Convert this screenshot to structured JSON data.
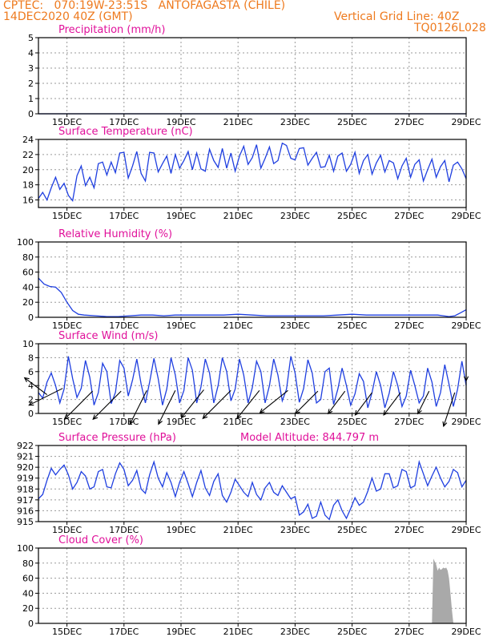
{
  "header": {
    "line1_left": "CPTEC:   070:19W-23:51S   ANTOFAGASTA (CHILE)",
    "line2_left": "14DEC2020 40Z (GMT)",
    "line1_right": "Vertical Grid Line: 40Z",
    "line2_right": "TQ0126L028",
    "model_altitude": "Model Altitude: 844.797 m"
  },
  "colors": {
    "header": "#ee7a1e",
    "title": "#e0109a",
    "series": "#1f3fe0",
    "cloud": "#a9a9a9",
    "wind_arrow": "#000000"
  },
  "chart_data": [
    {
      "type": "line",
      "title": "Precipitation (mm/h)",
      "x_tick_labels": [
        "15DEC",
        "17DEC",
        "19DEC",
        "21DEC",
        "23DEC",
        "25DEC",
        "27DEC",
        "29DEC"
      ],
      "x_tick_days": [
        15,
        17,
        19,
        21,
        23,
        25,
        27,
        29
      ],
      "xlim": [
        14.0,
        29.0
      ],
      "ylim": [
        0,
        5
      ],
      "y_ticks": [
        0,
        1,
        2,
        3,
        4,
        5
      ],
      "grid": true,
      "x": [
        14.0,
        29.0
      ],
      "values": [
        0,
        0
      ]
    },
    {
      "type": "line",
      "title": "Surface Temperature (nC)",
      "x_tick_labels": [
        "15DEC",
        "17DEC",
        "19DEC",
        "21DEC",
        "23DEC",
        "25DEC",
        "27DEC",
        "29DEC"
      ],
      "x_tick_days": [
        15,
        17,
        19,
        21,
        23,
        25,
        27,
        29
      ],
      "xlim": [
        14.0,
        29.0
      ],
      "ylim": [
        15,
        24
      ],
      "y_ticks": [
        16,
        18,
        20,
        22,
        24
      ],
      "grid": true,
      "x": [
        14.0,
        14.15,
        14.3,
        14.45,
        14.6,
        14.75,
        14.9,
        15.05,
        15.2,
        15.35,
        15.5,
        15.65,
        15.8,
        15.95,
        16.1,
        16.25,
        16.4,
        16.55,
        16.7,
        16.85,
        17.0,
        17.15,
        17.3,
        17.45,
        17.6,
        17.75,
        17.9,
        18.05,
        18.2,
        18.35,
        18.5,
        18.65,
        18.8,
        18.95,
        19.1,
        19.25,
        19.4,
        19.55,
        19.7,
        19.85,
        20.0,
        20.15,
        20.3,
        20.45,
        20.6,
        20.75,
        20.9,
        21.05,
        21.2,
        21.35,
        21.5,
        21.65,
        21.8,
        21.95,
        22.1,
        22.25,
        22.4,
        22.55,
        22.7,
        22.85,
        23.0,
        23.15,
        23.3,
        23.45,
        23.6,
        23.75,
        23.9,
        24.05,
        24.2,
        24.35,
        24.5,
        24.65,
        24.8,
        24.95,
        25.1,
        25.25,
        25.4,
        25.55,
        25.7,
        25.85,
        26.0,
        26.15,
        26.3,
        26.45,
        26.6,
        26.75,
        26.9,
        27.05,
        27.2,
        27.35,
        27.5,
        27.65,
        27.8,
        27.95,
        28.1,
        28.25,
        28.4,
        28.55,
        28.7,
        28.85,
        29.0
      ],
      "values": [
        16.2,
        17.0,
        16.0,
        17.6,
        19.0,
        17.4,
        18.2,
        16.6,
        15.9,
        19.2,
        20.5,
        17.9,
        19.0,
        17.6,
        20.8,
        21.0,
        19.3,
        21.0,
        19.6,
        22.2,
        22.3,
        18.9,
        20.5,
        22.4,
        19.5,
        18.5,
        22.3,
        22.2,
        19.7,
        20.8,
        21.8,
        19.5,
        22.0,
        20.2,
        21.2,
        22.4,
        20.0,
        22.2,
        20.1,
        19.8,
        22.7,
        21.2,
        20.3,
        22.8,
        20.2,
        22.2,
        19.8,
        21.8,
        23.1,
        20.7,
        21.6,
        23.3,
        20.2,
        21.5,
        23.0,
        20.8,
        21.2,
        23.5,
        23.2,
        21.5,
        21.3,
        22.8,
        22.9,
        20.6,
        21.5,
        22.3,
        20.3,
        20.4,
        21.9,
        19.8,
        21.8,
        22.2,
        19.8,
        20.7,
        22.3,
        19.5,
        21.2,
        22.0,
        19.4,
        20.9,
        21.9,
        19.7,
        21.2,
        20.9,
        18.8,
        20.5,
        21.5,
        19.0,
        20.7,
        21.3,
        18.5,
        20.0,
        21.4,
        19.0,
        20.4,
        21.2,
        18.4,
        20.6,
        21.0,
        20.1,
        18.8
      ]
    },
    {
      "type": "line",
      "title": "Relative Humidity (%)",
      "x_tick_labels": [
        "15DEC",
        "17DEC",
        "19DEC",
        "21DEC",
        "23DEC",
        "25DEC",
        "27DEC",
        "29DEC"
      ],
      "x_tick_days": [
        15,
        17,
        19,
        21,
        23,
        25,
        27,
        29
      ],
      "xlim": [
        14.0,
        29.0
      ],
      "ylim": [
        0,
        100
      ],
      "y_ticks": [
        0,
        20,
        40,
        60,
        80,
        100
      ],
      "grid": true,
      "x": [
        14.0,
        14.2,
        14.4,
        14.6,
        14.8,
        15.0,
        15.2,
        15.4,
        15.6,
        16.0,
        16.4,
        16.8,
        17.2,
        17.6,
        18.0,
        18.4,
        18.8,
        19.2,
        19.6,
        20.0,
        20.5,
        21.0,
        21.5,
        22.0,
        22.5,
        23.0,
        23.5,
        24.0,
        24.5,
        25.0,
        25.5,
        26.0,
        26.5,
        27.0,
        27.5,
        28.0,
        28.2,
        28.4,
        28.6,
        28.8,
        29.0
      ],
      "values": [
        52,
        44,
        41,
        40,
        33,
        20,
        9,
        4,
        3,
        2,
        1,
        1,
        2,
        3,
        3,
        2,
        3,
        3,
        3,
        3,
        3,
        4,
        3,
        2,
        2,
        2,
        2,
        2,
        3,
        4,
        3,
        3,
        3,
        3,
        3,
        3,
        2,
        1,
        2,
        6,
        10
      ]
    },
    {
      "type": "line",
      "title": "Surface Wind (m/s)",
      "x_tick_labels": [
        "15DEC",
        "17DEC",
        "19DEC",
        "21DEC",
        "23DEC",
        "25DEC",
        "27DEC",
        "29DEC"
      ],
      "x_tick_days": [
        15,
        17,
        19,
        21,
        23,
        25,
        27,
        29
      ],
      "xlim": [
        14.0,
        29.0
      ],
      "ylim": [
        0,
        10
      ],
      "y_ticks": [
        0,
        2,
        4,
        6,
        8,
        10
      ],
      "grid": true,
      "x": [
        14.0,
        14.15,
        14.3,
        14.45,
        14.6,
        14.75,
        14.9,
        15.05,
        15.2,
        15.35,
        15.5,
        15.65,
        15.8,
        15.95,
        16.1,
        16.25,
        16.4,
        16.55,
        16.7,
        16.85,
        17.0,
        17.15,
        17.3,
        17.45,
        17.6,
        17.75,
        17.9,
        18.05,
        18.2,
        18.35,
        18.5,
        18.65,
        18.8,
        18.95,
        19.1,
        19.25,
        19.4,
        19.55,
        19.7,
        19.85,
        20.0,
        20.15,
        20.3,
        20.45,
        20.6,
        20.75,
        20.9,
        21.05,
        21.2,
        21.35,
        21.5,
        21.65,
        21.8,
        21.95,
        22.1,
        22.25,
        22.4,
        22.55,
        22.7,
        22.85,
        23.0,
        23.15,
        23.3,
        23.45,
        23.6,
        23.75,
        23.9,
        24.05,
        24.2,
        24.35,
        24.5,
        24.65,
        24.8,
        24.95,
        25.1,
        25.25,
        25.4,
        25.55,
        25.7,
        25.85,
        26.0,
        26.15,
        26.3,
        26.45,
        26.6,
        26.75,
        26.9,
        27.05,
        27.2,
        27.35,
        27.5,
        27.65,
        27.8,
        27.95,
        28.1,
        28.25,
        28.4,
        28.55,
        28.7,
        28.85,
        29.0
      ],
      "values": [
        3.0,
        2.2,
        4.5,
        5.8,
        4.0,
        1.5,
        3.5,
        8.2,
        5.0,
        2.3,
        3.6,
        7.6,
        5.2,
        1.2,
        3.0,
        7.2,
        6.0,
        1.4,
        3.0,
        7.6,
        6.5,
        2.5,
        4.8,
        7.8,
        4.2,
        1.5,
        4.5,
        7.9,
        5.0,
        1.2,
        3.5,
        8.0,
        5.5,
        1.5,
        3.3,
        8.0,
        6.2,
        1.5,
        3.8,
        7.8,
        5.8,
        1.5,
        4.0,
        8.0,
        6.0,
        1.8,
        3.5,
        7.8,
        5.5,
        1.5,
        3.7,
        7.5,
        6.0,
        1.5,
        4.0,
        7.8,
        5.5,
        1.8,
        3.5,
        8.2,
        5.8,
        1.6,
        3.6,
        7.7,
        5.8,
        1.5,
        2.0,
        6.0,
        6.5,
        1.3,
        3.5,
        6.5,
        4.0,
        1.2,
        2.8,
        5.7,
        4.6,
        0.8,
        3.0,
        6.0,
        4.0,
        0.8,
        2.9,
        6.0,
        4.0,
        1.0,
        2.5,
        6.2,
        4.0,
        1.5,
        2.5,
        6.5,
        4.5,
        1.0,
        3.0,
        7.0,
        4.2,
        1.0,
        3.5,
        7.5,
        4.0
      ],
      "wind_vectors": [
        {
          "x": 14.3,
          "y": 2.7,
          "u": -4,
          "v": 3
        },
        {
          "x": 14.85,
          "y": 3.6,
          "u": -6,
          "v": -3
        },
        {
          "x": 15.9,
          "y": 3.2,
          "u": -5,
          "v": -5
        },
        {
          "x": 16.9,
          "y": 3.2,
          "u": -5,
          "v": -5
        },
        {
          "x": 17.8,
          "y": 3.3,
          "u": -3,
          "v": -6
        },
        {
          "x": 18.8,
          "y": 3.3,
          "u": -3,
          "v": -6
        },
        {
          "x": 19.8,
          "y": 3.4,
          "u": -4,
          "v": -5
        },
        {
          "x": 20.75,
          "y": 3.3,
          "u": -5,
          "v": -5
        },
        {
          "x": 21.75,
          "y": 3.3,
          "u": -4,
          "v": -5
        },
        {
          "x": 22.75,
          "y": 3.3,
          "u": -5,
          "v": -4
        },
        {
          "x": 23.8,
          "y": 3.2,
          "u": -4,
          "v": -4
        },
        {
          "x": 24.75,
          "y": 3.2,
          "u": -3,
          "v": -4
        },
        {
          "x": 25.7,
          "y": 3.0,
          "u": -3,
          "v": -4
        },
        {
          "x": 26.7,
          "y": 3.0,
          "u": -3,
          "v": -4
        },
        {
          "x": 27.7,
          "y": 3.2,
          "u": -2,
          "v": -4
        },
        {
          "x": 28.6,
          "y": 3.0,
          "u": -2,
          "v": -6
        },
        {
          "x": 29.0,
          "y": 6.3,
          "u": 0,
          "v": -2
        }
      ]
    },
    {
      "type": "line",
      "title": "Surface Pressure (hPa)",
      "x_tick_labels": [
        "15DEC",
        "17DEC",
        "19DEC",
        "21DEC",
        "23DEC",
        "25DEC",
        "27DEC",
        "29DEC"
      ],
      "x_tick_days": [
        15,
        17,
        19,
        21,
        23,
        25,
        27,
        29
      ],
      "xlim": [
        14.0,
        29.0
      ],
      "ylim": [
        915,
        922
      ],
      "y_ticks": [
        915,
        916,
        917,
        918,
        919,
        920,
        921,
        922
      ],
      "grid": true,
      "x": [
        14.0,
        14.15,
        14.3,
        14.45,
        14.6,
        14.75,
        14.9,
        15.05,
        15.2,
        15.35,
        15.5,
        15.65,
        15.8,
        15.95,
        16.1,
        16.25,
        16.4,
        16.55,
        16.7,
        16.85,
        17.0,
        17.15,
        17.3,
        17.45,
        17.6,
        17.75,
        17.9,
        18.05,
        18.2,
        18.35,
        18.5,
        18.65,
        18.8,
        18.95,
        19.1,
        19.25,
        19.4,
        19.55,
        19.7,
        19.85,
        20.0,
        20.15,
        20.3,
        20.45,
        20.6,
        20.75,
        20.9,
        21.05,
        21.2,
        21.35,
        21.5,
        21.65,
        21.8,
        21.95,
        22.1,
        22.25,
        22.4,
        22.55,
        22.7,
        22.85,
        23.0,
        23.15,
        23.3,
        23.45,
        23.6,
        23.75,
        23.9,
        24.05,
        24.2,
        24.35,
        24.5,
        24.65,
        24.8,
        24.95,
        25.1,
        25.25,
        25.4,
        25.55,
        25.7,
        25.85,
        26.0,
        26.15,
        26.3,
        26.45,
        26.6,
        26.75,
        26.9,
        27.05,
        27.2,
        27.35,
        27.5,
        27.65,
        27.8,
        27.95,
        28.1,
        28.25,
        28.4,
        28.55,
        28.7,
        28.85,
        29.0
      ],
      "values": [
        917.1,
        917.5,
        918.8,
        919.9,
        919.3,
        919.8,
        920.2,
        919.3,
        918.0,
        918.6,
        919.6,
        919.2,
        918.0,
        918.2,
        919.6,
        919.8,
        918.2,
        918.1,
        919.4,
        920.4,
        919.8,
        918.3,
        918.8,
        919.7,
        918.0,
        917.6,
        919.3,
        920.5,
        919.0,
        918.2,
        919.5,
        918.6,
        917.3,
        918.6,
        919.6,
        918.5,
        917.3,
        918.6,
        919.7,
        918.1,
        917.4,
        918.7,
        919.4,
        917.4,
        916.8,
        917.7,
        918.9,
        918.3,
        917.7,
        917.3,
        918.6,
        917.5,
        917.0,
        918.1,
        918.6,
        917.7,
        917.4,
        918.3,
        917.7,
        917.1,
        917.3,
        915.6,
        915.9,
        916.6,
        915.3,
        915.5,
        916.8,
        915.6,
        915.2,
        916.5,
        917.0,
        916.0,
        915.3,
        916.2,
        917.2,
        916.5,
        916.8,
        917.8,
        919.0,
        917.8,
        918.0,
        919.4,
        919.4,
        918.1,
        918.3,
        919.8,
        919.6,
        918.1,
        918.3,
        920.5,
        919.4,
        918.3,
        919.2,
        920.0,
        919.0,
        918.2,
        918.7,
        919.8,
        919.5,
        918.2,
        918.8
      ]
    },
    {
      "type": "area",
      "title": "Cloud Cover (%)",
      "x_tick_labels": [
        "15DEC",
        "17DEC",
        "19DEC",
        "21DEC",
        "23DEC",
        "25DEC",
        "27DEC",
        "29DEC"
      ],
      "x_tick_days": [
        15,
        17,
        19,
        21,
        23,
        25,
        27,
        29
      ],
      "xlim": [
        14.0,
        29.0
      ],
      "ylim": [
        0,
        100
      ],
      "y_ticks": [
        0,
        20,
        40,
        60,
        80,
        100
      ],
      "grid": true,
      "x": [
        14.0,
        27.8,
        27.85,
        27.9,
        27.95,
        28.0,
        28.05,
        28.1,
        28.15,
        28.2,
        28.25,
        28.3,
        28.35,
        28.4,
        28.45,
        28.5,
        28.55,
        29.0
      ],
      "values": [
        0,
        0,
        86,
        82,
        78,
        70,
        74,
        71,
        72,
        74,
        73,
        74,
        70,
        60,
        40,
        18,
        0,
        0
      ]
    }
  ]
}
